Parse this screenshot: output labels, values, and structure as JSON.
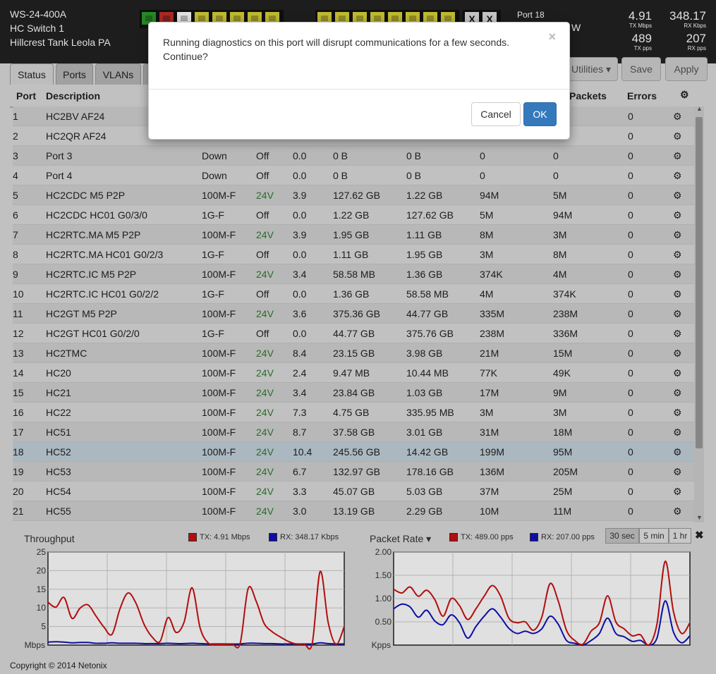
{
  "device": {
    "model": "WS-24-400A",
    "name": "HC Switch 1",
    "location": "Hillcrest Tank Leola PA"
  },
  "port_panel": {
    "selected_port": "Port 18",
    "cut_text": "W",
    "group1": [
      "green",
      "red",
      "white",
      "yellow",
      "yellow",
      "yellow",
      "yellow",
      "yellow"
    ],
    "group2": [
      "yellow",
      "yellow",
      "yellow",
      "yellow",
      "yellow",
      "yellow",
      "yellow",
      "yellow"
    ],
    "group3": [
      "X",
      "X"
    ]
  },
  "stats": {
    "tx_mbps": "4.91",
    "tx_mbps_label": "TX Mbps",
    "rx_kbps": "348.17",
    "rx_kbps_label": "RX Kbps",
    "tx_pps": "489",
    "tx_pps_label": "TX pps",
    "rx_pps": "207",
    "rx_pps_label": "RX pps"
  },
  "toolbar": {
    "utilities": "Utilities",
    "save": "Save",
    "apply": "Apply"
  },
  "tabs": [
    "Status",
    "Ports",
    "VLANs"
  ],
  "table": {
    "headers": {
      "port": "Port",
      "description": "Description",
      "packets": "Packets",
      "errors": "Errors"
    },
    "rows": [
      {
        "port": "1",
        "desc": "HC2BV AF24",
        "link": "",
        "poe": "",
        "power": "",
        "rx": "",
        "tx": "",
        "rxp": "",
        "txp": "",
        "err": "0"
      },
      {
        "port": "2",
        "desc": "HC2QR AF24",
        "link": "",
        "poe": "",
        "power": "",
        "rx": "",
        "tx": "",
        "rxp": "",
        "txp": "",
        "err": "0"
      },
      {
        "port": "3",
        "desc": "Port 3",
        "link": "Down",
        "poe": "Off",
        "power": "0.0",
        "rx": "0 B",
        "tx": "0 B",
        "rxp": "0",
        "txp": "0",
        "err": "0"
      },
      {
        "port": "4",
        "desc": "Port 4",
        "link": "Down",
        "poe": "Off",
        "power": "0.0",
        "rx": "0 B",
        "tx": "0 B",
        "rxp": "0",
        "txp": "0",
        "err": "0"
      },
      {
        "port": "5",
        "desc": "HC2CDC M5 P2P",
        "link": "100M-F",
        "poe": "24V",
        "power": "3.9",
        "rx": "127.62 GB",
        "tx": "1.22 GB",
        "rxp": "94M",
        "txp": "5M",
        "err": "0"
      },
      {
        "port": "6",
        "desc": "HC2CDC HC01 G0/3/0",
        "link": "1G-F",
        "poe": "Off",
        "power": "0.0",
        "rx": "1.22 GB",
        "tx": "127.62 GB",
        "rxp": "5M",
        "txp": "94M",
        "err": "0"
      },
      {
        "port": "7",
        "desc": "HC2RTC.MA M5 P2P",
        "link": "100M-F",
        "poe": "24V",
        "power": "3.9",
        "rx": "1.95 GB",
        "tx": "1.11 GB",
        "rxp": "8M",
        "txp": "3M",
        "err": "0"
      },
      {
        "port": "8",
        "desc": "HC2RTC.MA HC01 G0/2/3",
        "link": "1G-F",
        "poe": "Off",
        "power": "0.0",
        "rx": "1.11 GB",
        "tx": "1.95 GB",
        "rxp": "3M",
        "txp": "8M",
        "err": "0"
      },
      {
        "port": "9",
        "desc": "HC2RTC.IC M5 P2P",
        "link": "100M-F",
        "poe": "24V",
        "power": "3.4",
        "rx": "58.58 MB",
        "tx": "1.36 GB",
        "rxp": "374K",
        "txp": "4M",
        "err": "0"
      },
      {
        "port": "10",
        "desc": "HC2RTC.IC HC01 G0/2/2",
        "link": "1G-F",
        "poe": "Off",
        "power": "0.0",
        "rx": "1.36 GB",
        "tx": "58.58 MB",
        "rxp": "4M",
        "txp": "374K",
        "err": "0"
      },
      {
        "port": "11",
        "desc": "HC2GT M5 P2P",
        "link": "100M-F",
        "poe": "24V",
        "power": "3.6",
        "rx": "375.36 GB",
        "tx": "44.77 GB",
        "rxp": "335M",
        "txp": "238M",
        "err": "0"
      },
      {
        "port": "12",
        "desc": "HC2GT HC01 G0/2/0",
        "link": "1G-F",
        "poe": "Off",
        "power": "0.0",
        "rx": "44.77 GB",
        "tx": "375.76 GB",
        "rxp": "238M",
        "txp": "336M",
        "err": "0"
      },
      {
        "port": "13",
        "desc": "HC2TMC",
        "link": "100M-F",
        "poe": "24V",
        "power": "8.4",
        "rx": "23.15 GB",
        "tx": "3.98 GB",
        "rxp": "21M",
        "txp": "15M",
        "err": "0"
      },
      {
        "port": "14",
        "desc": "HC20",
        "link": "100M-F",
        "poe": "24V",
        "power": "2.4",
        "rx": "9.47 MB",
        "tx": "10.44 MB",
        "rxp": "77K",
        "txp": "49K",
        "err": "0"
      },
      {
        "port": "15",
        "desc": "HC21",
        "link": "100M-F",
        "poe": "24V",
        "power": "3.4",
        "rx": "23.84 GB",
        "tx": "1.03 GB",
        "rxp": "17M",
        "txp": "9M",
        "err": "0"
      },
      {
        "port": "16",
        "desc": "HC22",
        "link": "100M-F",
        "poe": "24V",
        "power": "7.3",
        "rx": "4.75 GB",
        "tx": "335.95 MB",
        "rxp": "3M",
        "txp": "3M",
        "err": "0"
      },
      {
        "port": "17",
        "desc": "HC51",
        "link": "100M-F",
        "poe": "24V",
        "power": "8.7",
        "rx": "37.58 GB",
        "tx": "3.01 GB",
        "rxp": "31M",
        "txp": "18M",
        "err": "0"
      },
      {
        "port": "18",
        "desc": "HC52",
        "link": "100M-F",
        "poe": "24V",
        "power": "10.4",
        "rx": "245.56 GB",
        "tx": "14.42 GB",
        "rxp": "199M",
        "txp": "95M",
        "err": "0"
      },
      {
        "port": "19",
        "desc": "HC53",
        "link": "100M-F",
        "poe": "24V",
        "power": "6.7",
        "rx": "132.97 GB",
        "tx": "178.16 GB",
        "rxp": "136M",
        "txp": "205M",
        "err": "0"
      },
      {
        "port": "20",
        "desc": "HC54",
        "link": "100M-F",
        "poe": "24V",
        "power": "3.3",
        "rx": "45.07 GB",
        "tx": "5.03 GB",
        "rxp": "37M",
        "txp": "25M",
        "err": "0"
      },
      {
        "port": "21",
        "desc": "HC55",
        "link": "100M-F",
        "poe": "24V",
        "power": "3.0",
        "rx": "13.19 GB",
        "tx": "2.29 GB",
        "rxp": "10M",
        "txp": "11M",
        "err": "0"
      }
    ],
    "selected_row": 17
  },
  "charts_ui": {
    "range_buttons": [
      "30 sec",
      "5 min",
      "1 hr"
    ],
    "active_range": 0,
    "footer": "Copyright © 2014 Netonix"
  },
  "chart_data": [
    {
      "type": "line",
      "title": "Throughput",
      "ylabel": "Mbps",
      "ylim": [
        0,
        25
      ],
      "yticks": [
        5,
        10,
        15,
        20,
        25
      ],
      "colors": {
        "tx": "#cc1111",
        "rx": "#1111bb"
      },
      "series": [
        {
          "name": "TX: 4.91 Mbps",
          "values": [
            11.5,
            10.2,
            12.8,
            7.2,
            9.9,
            10.8,
            7.8,
            4.8,
            2.9,
            9.8,
            14.0,
            11.2,
            5.6,
            2.2,
            1.0,
            7.4,
            3.4,
            6.2,
            15.4,
            4.6,
            0.6,
            0.2,
            0.2,
            0.3,
            0.4,
            15.2,
            11.8,
            5.8,
            3.6,
            2.2,
            1.0,
            0.3,
            0.3,
            0.4,
            19.8,
            6.0,
            0.2,
            5.0
          ]
        },
        {
          "name": "RX: 348.17 Kbps",
          "values": [
            0.8,
            0.9,
            0.8,
            0.6,
            0.7,
            0.7,
            0.5,
            0.5,
            0.6,
            0.5,
            0.5,
            0.5,
            0.4,
            0.4,
            0.4,
            0.5,
            0.4,
            0.4,
            0.5,
            0.4,
            0.3,
            0.3,
            0.3,
            0.3,
            0.3,
            0.5,
            0.5,
            0.4,
            0.4,
            0.3,
            0.3,
            0.3,
            0.3,
            0.3,
            0.6,
            0.4,
            0.3,
            0.3
          ]
        }
      ]
    },
    {
      "type": "line",
      "title": "Packet Rate",
      "ylabel": "Kpps",
      "ylim": [
        0,
        2.0
      ],
      "yticks": [
        "0.50",
        "1.00",
        "1.50",
        "2.00"
      ],
      "colors": {
        "tx": "#cc1111",
        "rx": "#1111bb"
      },
      "series": [
        {
          "name": "TX: 489.00 pps",
          "values": [
            1.2,
            1.12,
            1.25,
            1.05,
            1.18,
            0.98,
            0.62,
            1.0,
            0.85,
            0.55,
            0.78,
            1.05,
            1.28,
            1.05,
            0.58,
            0.48,
            0.5,
            0.32,
            0.6,
            1.32,
            0.95,
            0.32,
            0.1,
            0.02,
            0.3,
            0.48,
            1.06,
            0.5,
            0.35,
            0.2,
            0.22,
            0.0,
            0.45,
            1.8,
            0.72,
            0.25,
            0.48
          ]
        },
        {
          "name": "RX: 207.00 pps",
          "values": [
            0.78,
            0.88,
            0.82,
            0.6,
            0.75,
            0.52,
            0.44,
            0.65,
            0.48,
            0.15,
            0.4,
            0.62,
            0.78,
            0.6,
            0.36,
            0.25,
            0.3,
            0.25,
            0.35,
            0.62,
            0.45,
            0.1,
            0.04,
            0.0,
            0.1,
            0.25,
            0.58,
            0.25,
            0.18,
            0.08,
            0.1,
            0.0,
            0.15,
            0.95,
            0.28,
            0.05,
            0.2
          ]
        }
      ]
    }
  ],
  "modal": {
    "message": "Running diagnostics on this port will disrupt communications for a few seconds. Continue?",
    "close": "×",
    "cancel": "Cancel",
    "ok": "OK"
  }
}
